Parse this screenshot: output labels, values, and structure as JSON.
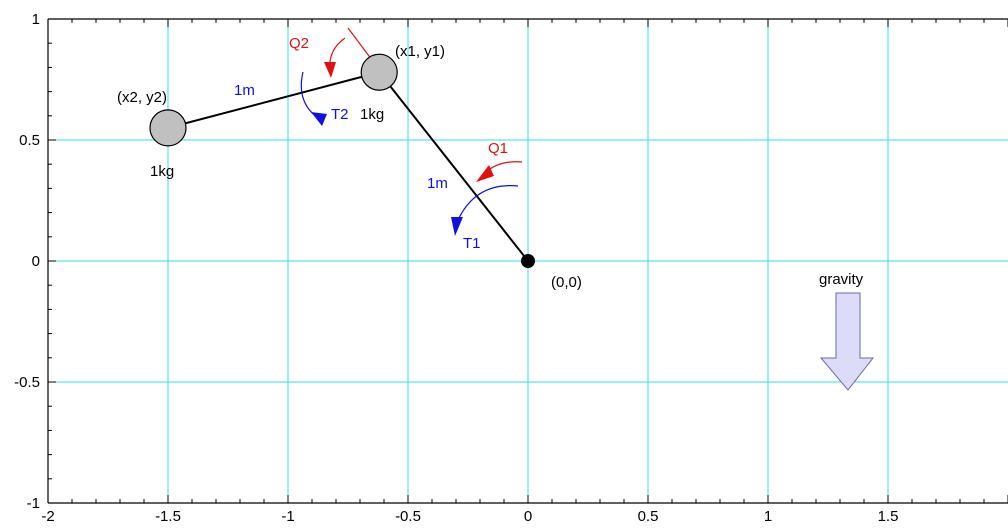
{
  "chart_data": {
    "type": "scatter",
    "xlim": [
      -2,
      2
    ],
    "ylim": [
      -1,
      1
    ],
    "x_ticks": [
      "-2",
      "-1.5",
      "-1",
      "-0.5",
      "0",
      "0.5",
      "1",
      "1.5"
    ],
    "y_ticks": [
      "1",
      "0.5",
      "0",
      "-0.5",
      "-1"
    ],
    "grid": true,
    "points": [
      {
        "name": "pivot",
        "x": 0,
        "y": 0
      },
      {
        "name": "mass1",
        "x": -0.62,
        "y": 0.78
      },
      {
        "name": "mass2",
        "x": -1.5,
        "y": 0.55
      }
    ]
  },
  "labels": {
    "origin": "(0,0)",
    "mass1_coord": "(x1, y1)",
    "mass2_coord": "(x2, y2)",
    "mass1_weight": "1kg",
    "mass2_weight": "1kg",
    "link1_length": "1m",
    "link2_length": "1m",
    "torque1": "T1",
    "torque2": "T2",
    "angle1": "Q1",
    "angle2": "Q2",
    "gravity": "gravity"
  },
  "colors": {
    "grid": "#33e0e6",
    "torque": "#1010e0",
    "angle": "#e01010",
    "mass_fill": "#c0c0c0",
    "gravity_fill": "#dcdcf8"
  }
}
